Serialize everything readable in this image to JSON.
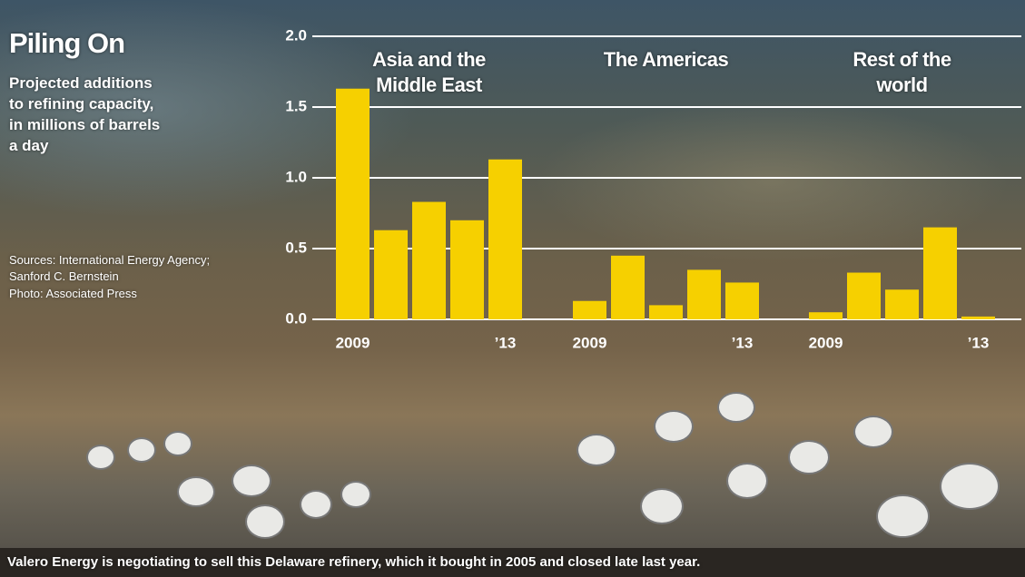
{
  "chart_data": {
    "type": "bar",
    "title": "Piling On",
    "subtitle": "Projected additions to refining capacity, in millions of barrels a day",
    "sources": "Sources: International Energy Agency; Sanford C. Bernstein",
    "photo_credit": "Photo: Associated Press",
    "caption": "Valero Energy is negotiating to sell this Delaware refinery, which it bought in 2005 and closed late last year.",
    "color": "#f6d000",
    "ylim": [
      0,
      2
    ],
    "yticks": [
      {
        "value": 0,
        "label": "0.0"
      },
      0.5,
      {
        "value": 1,
        "label": "1.0"
      },
      1.5,
      {
        "value": 2,
        "label": "2.0"
      }
    ],
    "grid": true,
    "groups": [
      {
        "name": "Asia and the Middle East",
        "categories": [
          "2009",
          null,
          null,
          null,
          "’13"
        ],
        "values": [
          1.63,
          0.63,
          0.83,
          0.7,
          1.13
        ]
      },
      {
        "name": "The Americas",
        "categories": [
          "2009",
          null,
          null,
          null,
          "’13"
        ],
        "values": [
          0.13,
          0.45,
          0.1,
          0.35,
          0.26
        ]
      },
      {
        "name": "Rest of the world",
        "categories": [
          "2009",
          null,
          null,
          null,
          "’13"
        ],
        "values": [
          0.05,
          0.33,
          0.21,
          0.65,
          0.02
        ]
      }
    ]
  }
}
